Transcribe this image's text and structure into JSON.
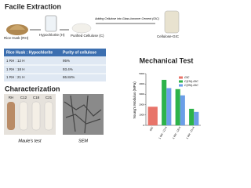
{
  "header": {
    "title": "Facile Extraction"
  },
  "process": {
    "steps": [
      "Rice Husk (RH)",
      "Hypochlorite (H)",
      "Purified Cellulose (C)",
      "Cellulose-GIC"
    ],
    "arrow_note": "Adding Cellulose into Glass-Ionomer Cement (GIC)"
  },
  "table": {
    "header": [
      "Rice Husk : Hypochlorite",
      "Purity of cellulose"
    ],
    "rows": [
      [
        "1 RH : 12 H",
        "95%"
      ],
      [
        "1 RH : 18 H",
        "93.4%"
      ],
      [
        "1 RH : 21 H",
        "86.84%"
      ]
    ]
  },
  "characterization": {
    "title": "Characterization",
    "tube_labels": [
      "RH",
      "C12",
      "C18",
      "C21"
    ],
    "maule_caption": "Maule's test",
    "sem_caption": "SEM"
  },
  "chart_data": {
    "type": "bar",
    "title": "Mechanical Test",
    "y_label": "Young's Modulus (MPa)",
    "categories": [
      "GIC",
      "1 RH : 12 H",
      "1 RH : 18 H",
      "1 RH : 21 H"
    ],
    "series": [
      {
        "name": "GIC",
        "color": "#e8746a",
        "values": [
          1800,
          null,
          null,
          null
        ]
      },
      {
        "name": "C(1%)-GIC",
        "color": "#2db34a",
        "values": [
          null,
          4400,
          3500,
          1600
        ]
      },
      {
        "name": "C(3%)-GIC",
        "color": "#6b9ee8",
        "values": [
          null,
          3600,
          2900,
          1300
        ]
      }
    ],
    "ylim": [
      0,
      5000
    ],
    "yticks": [
      0,
      1000,
      2000,
      3000,
      4000,
      5000
    ]
  }
}
